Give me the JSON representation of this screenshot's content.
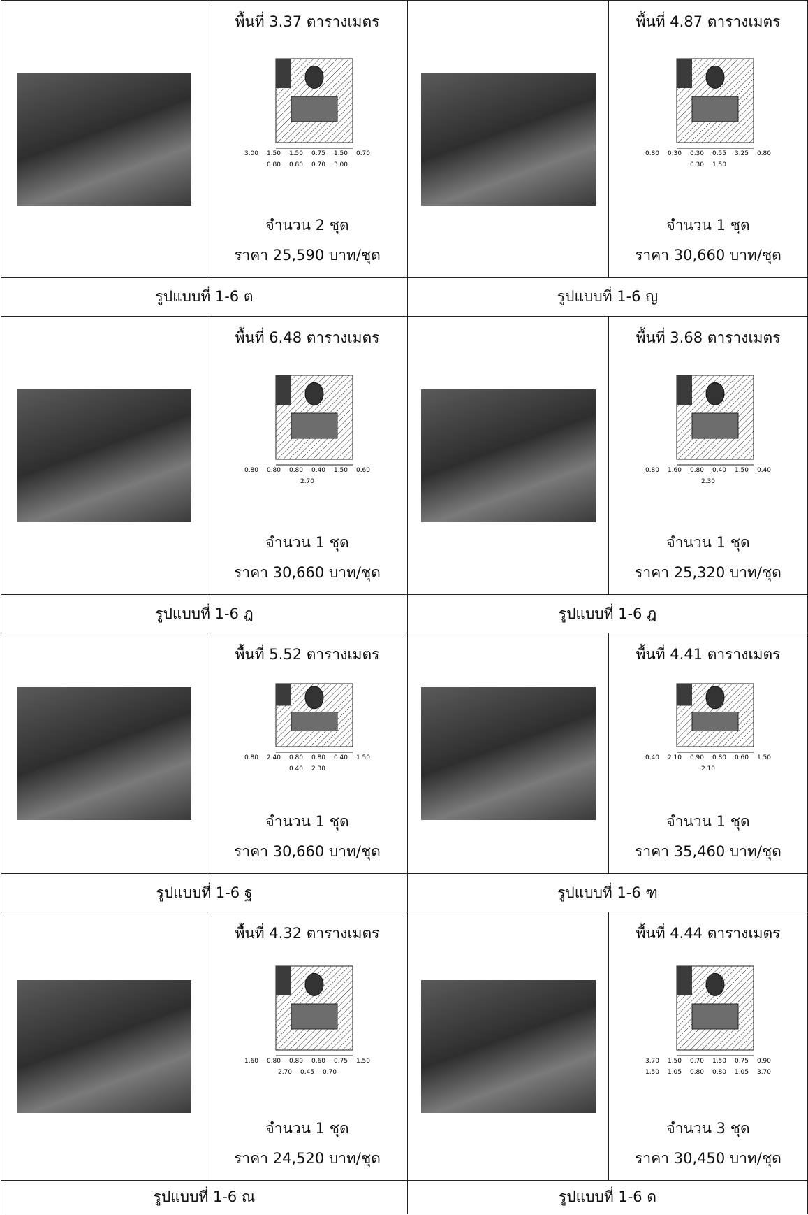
{
  "rows": [
    {
      "cells": [
        {
          "area": "พื้นที่ 3.37 ตารางเมตร",
          "dims": [
            "3.00",
            "1.50",
            "1.50",
            "0.75",
            "1.50",
            "0.70",
            "0.80",
            "0.80",
            "0.70",
            "3.00"
          ],
          "count": "จำนวน 2 ชุด",
          "price": "ราคา 25,590 บาท/ชุด",
          "caption": "รูปแบบที่ 1-6 ต"
        },
        {
          "area": "พื้นที่ 4.87 ตารางเมตร",
          "dims": [
            "0.80",
            "0.30",
            "0.30",
            "0.55",
            "3.25",
            "0.80",
            "0.30",
            "1.50"
          ],
          "count": "จำนวน 1 ชุด",
          "price": "ราคา 30,660 บาท/ชุด",
          "caption": "รูปแบบที่ 1-6 ญ"
        }
      ]
    },
    {
      "cells": [
        {
          "area": "พื้นที่ 6.48 ตารางเมตร",
          "dims": [
            "0.80",
            "0.80",
            "0.80",
            "0.40",
            "1.50",
            "0.60",
            "2.70"
          ],
          "count": "จำนวน 1 ชุด",
          "price": "ราคา 30,660 บาท/ชุด",
          "caption": "รูปแบบที่ 1-6 ฎ"
        },
        {
          "area": "พื้นที่ 3.68 ตารางเมตร",
          "dims": [
            "0.80",
            "1.60",
            "0.80",
            "0.40",
            "1.50",
            "0.40",
            "2.30"
          ],
          "count": "จำนวน 1 ชุด",
          "price": "ราคา 25,320 บาท/ชุด",
          "caption": "รูปแบบที่ 1-6 ฎ"
        }
      ]
    },
    {
      "cells": [
        {
          "area": "พื้นที่ 5.52 ตารางเมตร",
          "dims": [
            "0.80",
            "2.40",
            "0.80",
            "0.80",
            "0.40",
            "1.50",
            "0.40",
            "2.30"
          ],
          "count": "จำนวน 1 ชุด",
          "price": "ราคา 30,660 บาท/ชุด",
          "caption": "รูปแบบที่ 1-6 ฐ"
        },
        {
          "area": "พื้นที่ 4.41 ตารางเมตร",
          "dims": [
            "0.40",
            "2.10",
            "0.90",
            "0.80",
            "0.60",
            "1.50",
            "2.10"
          ],
          "count": "จำนวน 1 ชุด",
          "price": "ราคา 35,460 บาท/ชุด",
          "caption": "รูปแบบที่ 1-6 ฑ"
        }
      ]
    },
    {
      "cells": [
        {
          "area": "พื้นที่ 4.32 ตารางเมตร",
          "dims": [
            "1.60",
            "0.80",
            "0.80",
            "0.60",
            "0.75",
            "1.50",
            "2.70",
            "0.45",
            "0.70"
          ],
          "count": "จำนวน 1 ชุด",
          "price": "ราคา 24,520 บาท/ชุด",
          "caption": "รูปแบบที่ 1-6 ณ"
        },
        {
          "area": "พื้นที่ 4.44 ตารางเมตร",
          "dims": [
            "3.70",
            "1.50",
            "0.70",
            "1.50",
            "0.75",
            "0.90",
            "1.50",
            "1.05",
            "0.80",
            "0.80",
            "1.05",
            "3.70"
          ],
          "count": "จำนวน 3 ชุด",
          "price": "ราคา 30,450 บาท/ชุด",
          "caption": "รูปแบบที่ 1-6 ด"
        }
      ]
    }
  ]
}
